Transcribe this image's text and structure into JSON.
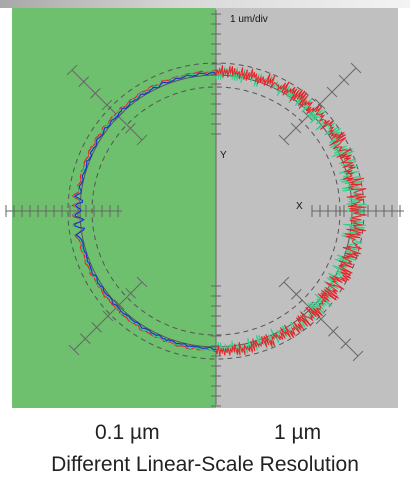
{
  "figure": {
    "scale_label": "1 um/div",
    "axis_y": "Y",
    "axis_x": "X",
    "left_resolution": "0.1 µm",
    "right_resolution": "1 µm",
    "caption": "Different Linear-Scale Resolution"
  },
  "colors": {
    "left_panel": "#6ec06e",
    "right_panel": "#c0c0c0",
    "trace_blue": "#2232c8",
    "trace_red": "#e8242a",
    "trace_green": "#2ed28a",
    "reference_circles": "#555555",
    "ticks": "#666666"
  }
}
